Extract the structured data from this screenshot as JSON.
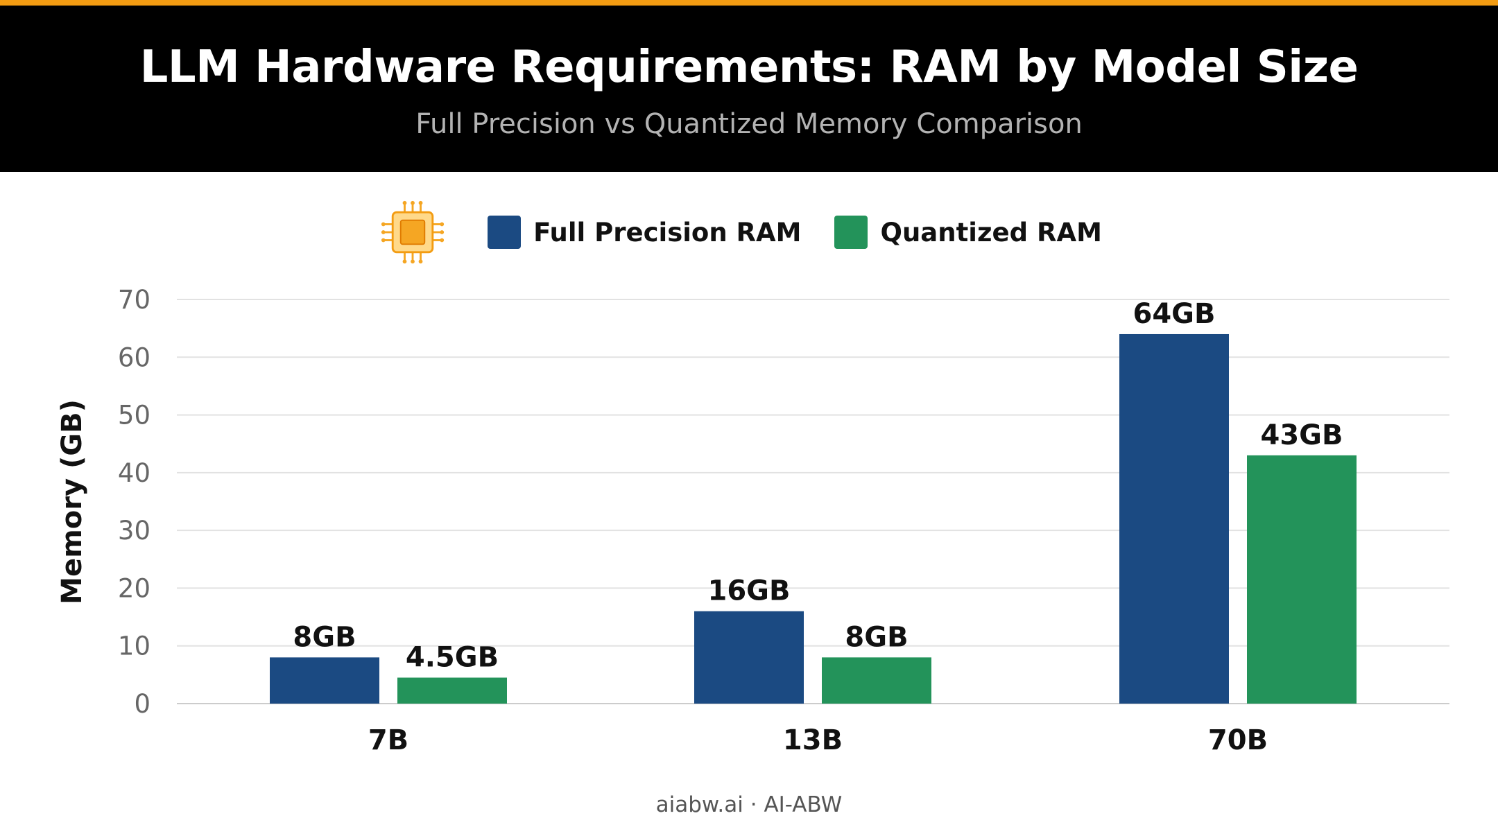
{
  "header": {
    "title": "LLM Hardware Requirements: RAM by Model Size",
    "subtitle": "Full Precision vs Quantized Memory Comparison"
  },
  "legend": {
    "icon": "chip-icon",
    "items": [
      {
        "label": "Full Precision RAM",
        "color": "#1b4a82"
      },
      {
        "label": "Quantized RAM",
        "color": "#23935a"
      }
    ]
  },
  "footer": {
    "text": "aiabw.ai · AI-ABW"
  },
  "chart_data": {
    "type": "bar",
    "categories": [
      "7B",
      "13B",
      "70B"
    ],
    "series": [
      {
        "name": "Full Precision RAM",
        "color": "#1b4a82",
        "values": [
          8,
          16,
          64
        ],
        "labels": [
          "8GB",
          "16GB",
          "64GB"
        ]
      },
      {
        "name": "Quantized RAM",
        "color": "#23935a",
        "values": [
          4.5,
          8,
          43
        ],
        "labels": [
          "4.5GB",
          "8GB",
          "43GB"
        ]
      }
    ],
    "ylabel": "Memory (GB)",
    "ylim": [
      0,
      70
    ],
    "yticks": [
      0,
      10,
      20,
      30,
      40,
      50,
      60,
      70
    ],
    "grid": true,
    "legend_position": "top-center"
  }
}
